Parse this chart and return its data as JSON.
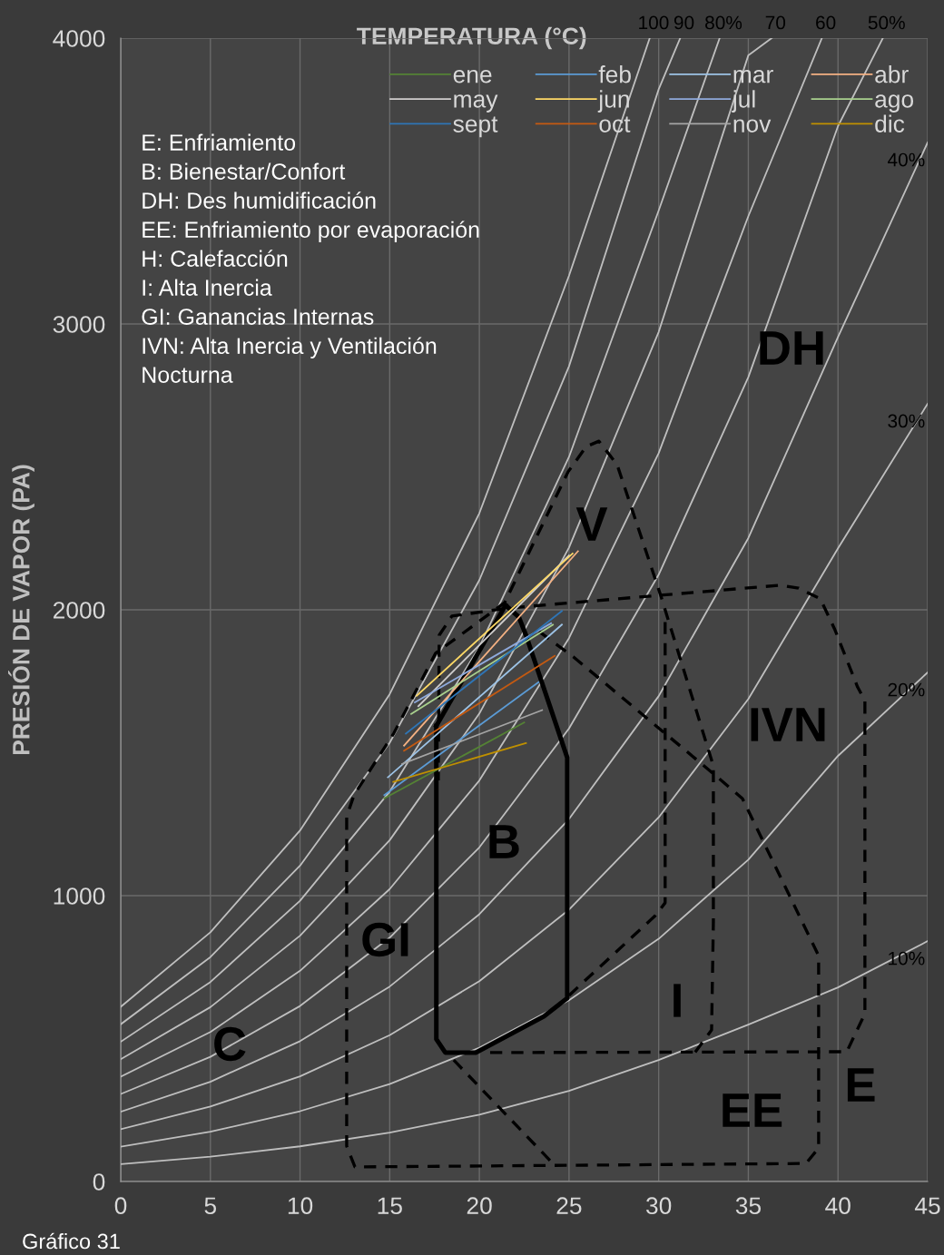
{
  "chart_data": {
    "type": "line",
    "xlabel": "TEMPERATURA (°C)",
    "ylabel": "PRESIÓN DE VAPOR (PA)",
    "xlim": [
      0,
      45
    ],
    "xticks": [
      0,
      5,
      10,
      15,
      20,
      25,
      30,
      35,
      40,
      45
    ],
    "ylim": [
      0,
      4000
    ],
    "yticks": [
      0,
      1000,
      2000,
      3000,
      4000
    ],
    "grid": true,
    "legend": "top right",
    "marker": "none",
    "series": [
      {
        "name": "10%",
        "color": "#bfbfbf",
        "line_style": "solid",
        "x": [
          0,
          5,
          10,
          15,
          20,
          25,
          30,
          35,
          40,
          45
        ],
        "values": [
          61,
          87,
          123,
          171,
          234,
          317,
          425,
          549,
          679,
          841
        ]
      },
      {
        "name": "20%",
        "color": "#bfbfbf",
        "line_style": "solid",
        "x": [
          0,
          5,
          10,
          15,
          20,
          25,
          30,
          35,
          40,
          45
        ],
        "values": [
          122,
          174,
          246,
          341,
          468,
          634,
          849,
          1126,
          1489,
          1781
        ]
      },
      {
        "name": "30%",
        "color": "#bfbfbf",
        "line_style": "solid",
        "x": [
          0,
          5,
          10,
          15,
          20,
          25,
          30,
          35,
          40,
          45
        ],
        "values": [
          183,
          262,
          368,
          512,
          701,
          951,
          1274,
          1688,
          2215,
          2721
        ]
      },
      {
        "name": "40%",
        "color": "#bfbfbf",
        "line_style": "solid",
        "x": [
          0,
          5,
          10,
          15,
          20,
          25,
          30,
          35,
          40,
          45
        ],
        "values": [
          244,
          349,
          491,
          682,
          935,
          1268,
          1698,
          2251,
          2954,
          3635
        ]
      },
      {
        "name": "50%",
        "color": "#bfbfbf",
        "line_style": "solid",
        "x": [
          0,
          5,
          10,
          15,
          20,
          25,
          30,
          35,
          40,
          42.5
        ],
        "values": [
          306,
          436,
          614,
          853,
          1169,
          1585,
          2123,
          2814,
          3692,
          4000
        ]
      },
      {
        "name": "60",
        "color": "#bfbfbf",
        "line_style": "solid",
        "x": [
          0,
          5,
          10,
          15,
          20,
          25,
          30,
          35,
          39.1
        ],
        "values": [
          367,
          523,
          737,
          1023,
          1403,
          1901,
          2548,
          3377,
          4000
        ]
      },
      {
        "name": "70",
        "color": "#bfbfbf",
        "line_style": "solid",
        "x": [
          0,
          5,
          10,
          15,
          20,
          25,
          30,
          35,
          36.3
        ],
        "values": [
          428,
          610,
          860,
          1194,
          1637,
          2218,
          2972,
          3940,
          4000
        ]
      },
      {
        "name": "80%",
        "color": "#bfbfbf",
        "line_style": "solid",
        "x": [
          0,
          5,
          10,
          15,
          20,
          25,
          30,
          33.4
        ],
        "values": [
          489,
          698,
          982,
          1364,
          1870,
          2535,
          3397,
          4000
        ]
      },
      {
        "name": "90",
        "color": "#bfbfbf",
        "line_style": "solid",
        "x": [
          0,
          5,
          10,
          15,
          20,
          25,
          30,
          31.2
        ],
        "values": [
          550,
          785,
          1105,
          1535,
          2104,
          2852,
          3821,
          4000
        ]
      },
      {
        "name": "100",
        "color": "#bfbfbf",
        "line_style": "solid",
        "x": [
          0,
          5,
          10,
          15,
          20,
          25,
          29.5
        ],
        "values": [
          611,
          872,
          1228,
          1705,
          2338,
          3169,
          4000
        ]
      },
      {
        "color": "#000000",
        "line_style": "dashed",
        "x": [
          23.33,
          25.25,
          32.95,
          34.67,
          38.92,
          38.92,
          38.21,
          13.06,
          12.6,
          12.6,
          13.01,
          15.23,
          17.56,
          21.41,
          24.95,
          25.96,
          26.67,
          27.68,
          30.11,
          33.05,
          33.05,
          32.95,
          31.98
        ],
        "values": [
          1924,
          1835,
          1432,
          1340,
          790,
          117,
          63,
          51,
          124,
          1276,
          1352,
          1568,
          1848,
          2025,
          2483,
          2571,
          2590,
          2508,
          2051,
          1454,
          908,
          530,
          448
        ]
      },
      {
        "color": "#000000",
        "line_style": "dashed",
        "x": [
          20.6,
          40.49,
          41.5,
          41.5,
          41.09,
          39.83,
          39.02,
          37.8,
          36.79,
          30.11,
          21.61,
          18.47,
          17.76,
          17.71
        ],
        "values": [
          451,
          454,
          587,
          1683,
          1730,
          1930,
          2038,
          2076,
          2086,
          2051,
          2006,
          1978,
          1911,
          1403
        ]
      },
      {
        "color": "#000000",
        "line_style": "dashed",
        "x": [
          25.0,
          29.81,
          30.36,
          30.36
        ],
        "values": [
          651,
          930,
          975,
          1962
        ]
      },
      {
        "color": "#000000",
        "line_style": "dashed",
        "x": [
          18.57,
          24.04
        ],
        "values": [
          425,
          67
        ]
      },
      {
        "color": "#000000",
        "line_style": "solid",
        "x": [
          21.46,
          22.2,
          22.6,
          24.9,
          24.9,
          23.6,
          19.8,
          18.1,
          17.6,
          17.6
        ],
        "values": [
          2016,
          1975,
          1911,
          1483,
          641,
          578,
          451,
          451,
          498,
          1594
        ]
      },
      {
        "color": "#000000",
        "line_style": "solid",
        "x": [
          17.6,
          21.46
        ],
        "values": [
          1594,
          2016
        ]
      },
      {
        "name": "ene",
        "color": "#548235",
        "line_style": "solid",
        "x": [
          14.7,
          22.5
        ],
        "values": [
          1340,
          1606
        ]
      },
      {
        "name": "feb",
        "color": "#5b9bd5",
        "line_style": "solid",
        "x": [
          14.7,
          23.3
        ],
        "values": [
          1352,
          1747
        ]
      },
      {
        "name": "mar",
        "color": "#9dc3e6",
        "line_style": "solid",
        "x": [
          14.9,
          24.6
        ],
        "values": [
          1414,
          1948
        ]
      },
      {
        "name": "abr",
        "color": "#f4b183",
        "line_style": "solid",
        "x": [
          15.8,
          25.5
        ],
        "values": [
          1525,
          2205
        ]
      },
      {
        "name": "may",
        "color": "#d0cece",
        "line_style": "solid",
        "x": [
          16.6,
          25.0
        ],
        "values": [
          1663,
          2190
        ]
      },
      {
        "name": "jun",
        "color": "#ffd966",
        "line_style": "solid",
        "x": [
          16.5,
          25.2
        ],
        "values": [
          1699,
          2197
        ]
      },
      {
        "name": "jul",
        "color": "#8faadc",
        "line_style": "solid",
        "x": [
          16.4,
          24.0
        ],
        "values": [
          1676,
          1953
        ]
      },
      {
        "name": "ago",
        "color": "#a9d18e",
        "line_style": "solid",
        "x": [
          16.2,
          24.1
        ],
        "values": [
          1636,
          1948
        ]
      },
      {
        "name": "sept",
        "color": "#2e75b6",
        "line_style": "solid",
        "x": [
          15.9,
          24.6
        ],
        "values": [
          1567,
          1996
        ]
      },
      {
        "name": "oct",
        "color": "#c55a11",
        "line_style": "solid",
        "x": [
          15.8,
          24.2
        ],
        "values": [
          1507,
          1839
        ]
      },
      {
        "name": "nov",
        "color": "#a5a5a5",
        "line_style": "solid",
        "x": [
          15.7,
          23.5
        ],
        "values": [
          1461,
          1649
        ]
      },
      {
        "name": "dic",
        "color": "#bf9000",
        "line_style": "solid",
        "x": [
          15.2,
          22.6
        ],
        "values": [
          1398,
          1534
        ]
      }
    ],
    "annotations": [
      "C",
      "GI",
      "B",
      "V",
      "DH",
      "IVN",
      "I",
      "EE",
      "E",
      "E: Enfriamiento",
      "B: Bienestar/Confort",
      "DH: Des humidificación",
      "EE: Enfriamiento por evaporación",
      "H: Calefacción",
      "I: Alta Inercia",
      "GI: Ganancias Internas",
      "IVN: Alta Inercia y Ventilación",
      "Nocturna",
      "Gráfico 31"
    ]
  }
}
